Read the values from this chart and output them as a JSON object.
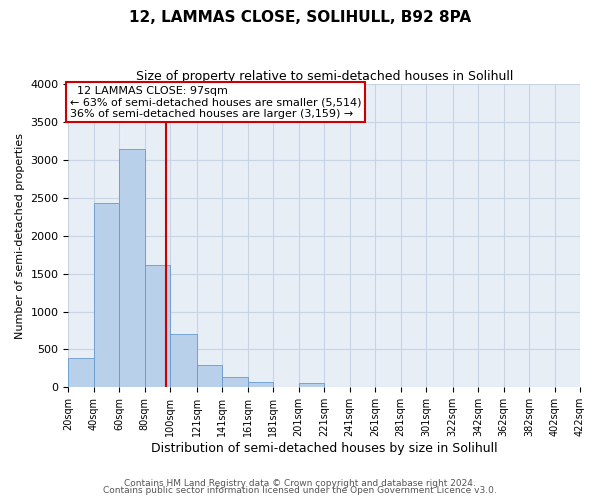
{
  "title": "12, LAMMAS CLOSE, SOLIHULL, B92 8PA",
  "subtitle": "Size of property relative to semi-detached houses in Solihull",
  "xlabel": "Distribution of semi-detached houses by size in Solihull",
  "ylabel": "Number of semi-detached properties",
  "footer1": "Contains HM Land Registry data © Crown copyright and database right 2024.",
  "footer2": "Contains public sector information licensed under the Open Government Licence v3.0.",
  "annotation_line1": "12 LAMMAS CLOSE: 97sqm",
  "annotation_line2": "← 63% of semi-detached houses are smaller (5,514)",
  "annotation_line3": "36% of semi-detached houses are larger (3,159) →",
  "property_size": 97,
  "bin_edges": [
    20,
    40,
    60,
    80,
    100,
    121,
    141,
    161,
    181,
    201,
    221,
    241,
    261,
    281,
    301,
    322,
    342,
    362,
    382,
    402,
    422
  ],
  "bar_heights": [
    390,
    2430,
    3150,
    1620,
    700,
    290,
    130,
    70,
    0,
    55,
    0,
    0,
    0,
    0,
    0,
    0,
    0,
    0,
    0,
    0
  ],
  "bar_color": "#b8d0ea",
  "bar_edge_color": "#6699cc",
  "vline_color": "#cc0000",
  "grid_color": "#c8d4e4",
  "background_color": "#e8eef6",
  "ylim": [
    0,
    4000
  ],
  "yticks": [
    0,
    500,
    1000,
    1500,
    2000,
    2500,
    3000,
    3500,
    4000
  ],
  "annotation_box_facecolor": "white",
  "annotation_box_edgecolor": "#cc0000",
  "title_fontsize": 11,
  "subtitle_fontsize": 9,
  "ylabel_fontsize": 8,
  "xlabel_fontsize": 9,
  "tick_fontsize": 7,
  "footer_fontsize": 6.5
}
